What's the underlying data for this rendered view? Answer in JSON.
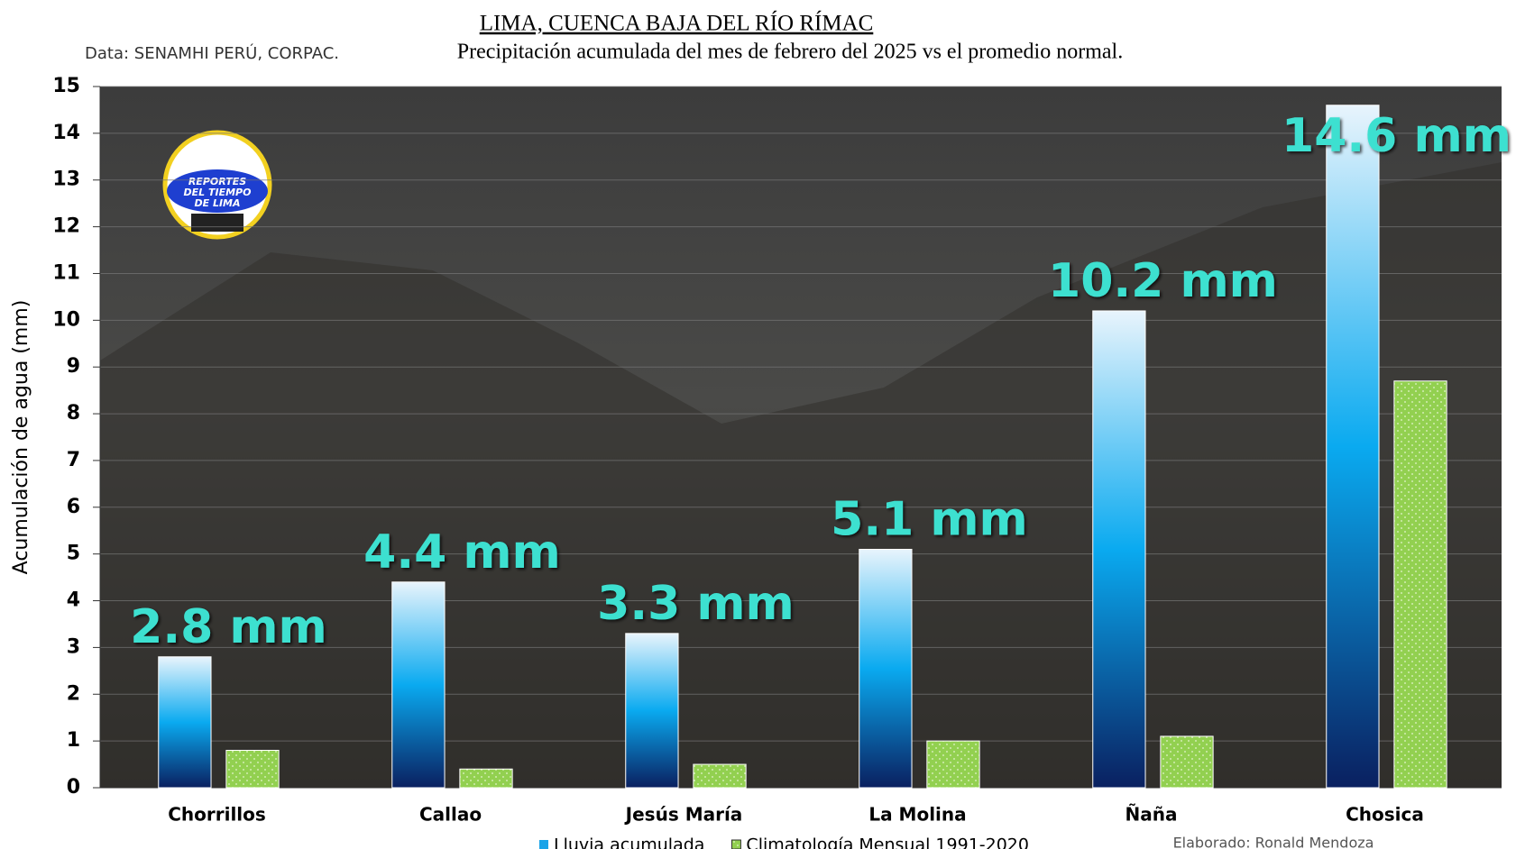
{
  "chart_data": {
    "type": "bar",
    "title": "LIMA, CUENCA BAJA DEL RÍO RÍMAC",
    "subtitle": "Precipitación acumulada del mes de febrero del 2025 vs el promedio normal.",
    "source": "Data: SENAMHI PERÚ, CORPAC.",
    "credit": "Elaborado: Ronald Mendoza",
    "y_label": "Acumulación de agua (mm)",
    "logo_text": [
      "REPORTES",
      "DEL TIEMPO",
      "DE LIMA"
    ],
    "categories": [
      "Chorrillos",
      "Callao",
      "Jesús María",
      "La Molina",
      "Ñaña",
      "Chosica"
    ],
    "series": [
      {
        "name": "Lluvia acumulada",
        "color": "#1aa3e8",
        "values": [
          2.8,
          4.4,
          3.3,
          5.1,
          10.2,
          14.6
        ],
        "value_labels": [
          "2.8 mm",
          "4.4 mm",
          "3.3 mm",
          "5.1 mm",
          "10.2 mm",
          "14.6 mm"
        ]
      },
      {
        "name": "Climatología Mensual 1991-2020",
        "color": "#92d050",
        "values": [
          0.8,
          0.4,
          0.5,
          1.0,
          1.1,
          8.7
        ]
      }
    ],
    "ylim": [
      0,
      15
    ],
    "yticks": [
      0,
      1,
      2,
      3,
      4,
      5,
      6,
      7,
      8,
      9,
      10,
      11,
      12,
      13,
      14,
      15
    ],
    "grid": true
  }
}
